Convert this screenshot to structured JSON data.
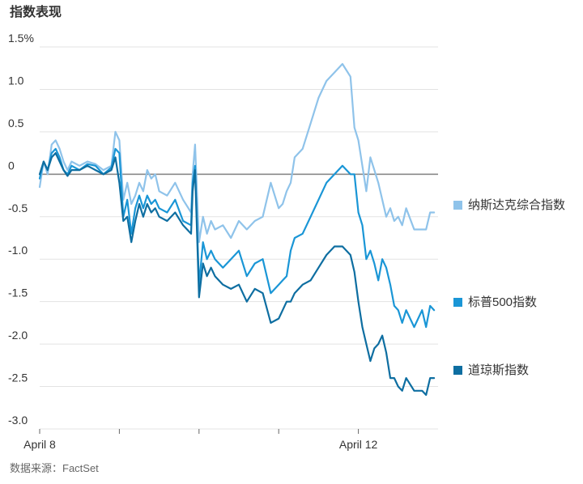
{
  "chart_data": {
    "type": "line",
    "title": "指数表现",
    "source": "数据来源：FactSet",
    "xlabel": "",
    "ylabel": "",
    "ylim": [
      -3.0,
      1.5
    ],
    "y_ticks": [
      "1.5%",
      "1.0",
      "0.5",
      "0",
      "-0.5",
      "-1.0",
      "-1.5",
      "-2.0",
      "-2.5",
      "-3.0"
    ],
    "y_tick_values": [
      1.5,
      1.0,
      0.5,
      0,
      -0.5,
      -1.0,
      -1.5,
      -2.0,
      -2.5,
      -3.0
    ],
    "x_range": [
      0,
      5
    ],
    "x_tick_positions": [
      0,
      1,
      2,
      3,
      4
    ],
    "x_tick_labels": [
      "April 8",
      "",
      "",
      "",
      "April 12"
    ],
    "x_unit": "trading days from April 8",
    "grid": true,
    "zero_line": true,
    "legend_position": "right",
    "series": [
      {
        "name": "纳斯达克综合指数",
        "color": "#8fc3ea",
        "x": [
          0,
          0.05,
          0.1,
          0.15,
          0.2,
          0.25,
          0.3,
          0.35,
          0.4,
          0.5,
          0.6,
          0.7,
          0.8,
          0.9,
          0.95,
          1.0,
          1.05,
          1.1,
          1.15,
          1.2,
          1.25,
          1.3,
          1.35,
          1.4,
          1.45,
          1.5,
          1.6,
          1.7,
          1.8,
          1.9,
          1.92,
          1.95,
          2.0,
          2.05,
          2.1,
          2.15,
          2.2,
          2.3,
          2.4,
          2.5,
          2.6,
          2.7,
          2.8,
          2.9,
          3.0,
          3.05,
          3.1,
          3.15,
          3.2,
          3.3,
          3.4,
          3.5,
          3.6,
          3.7,
          3.8,
          3.9,
          3.95,
          4.0,
          4.05,
          4.1,
          4.15,
          4.2,
          4.25,
          4.3,
          4.35,
          4.4,
          4.45,
          4.5,
          4.55,
          4.6,
          4.7,
          4.8,
          4.85,
          4.9,
          4.95
        ],
        "values": [
          -0.15,
          0.15,
          0.0,
          0.35,
          0.4,
          0.3,
          0.15,
          0.05,
          0.15,
          0.1,
          0.15,
          0.12,
          0.05,
          0.1,
          0.5,
          0.4,
          -0.3,
          -0.1,
          -0.35,
          -0.25,
          -0.1,
          -0.2,
          0.05,
          -0.05,
          0.0,
          -0.2,
          -0.25,
          -0.1,
          -0.3,
          -0.45,
          0.0,
          0.35,
          -0.8,
          -0.5,
          -0.7,
          -0.55,
          -0.65,
          -0.6,
          -0.75,
          -0.55,
          -0.65,
          -0.55,
          -0.5,
          -0.1,
          -0.4,
          -0.35,
          -0.2,
          -0.1,
          0.2,
          0.3,
          0.6,
          0.9,
          1.1,
          1.2,
          1.3,
          1.15,
          0.55,
          0.4,
          0.1,
          -0.2,
          0.2,
          0.05,
          -0.1,
          -0.3,
          -0.5,
          -0.4,
          -0.55,
          -0.5,
          -0.6,
          -0.4,
          -0.65,
          -0.65,
          -0.65,
          -0.45,
          -0.45
        ]
      },
      {
        "name": "标普500指数",
        "color": "#1a96d6",
        "x": [
          0,
          0.05,
          0.1,
          0.15,
          0.2,
          0.25,
          0.3,
          0.35,
          0.4,
          0.5,
          0.6,
          0.7,
          0.8,
          0.9,
          0.95,
          1.0,
          1.05,
          1.1,
          1.15,
          1.2,
          1.25,
          1.3,
          1.35,
          1.4,
          1.45,
          1.5,
          1.6,
          1.7,
          1.8,
          1.9,
          1.92,
          1.95,
          2.0,
          2.05,
          2.1,
          2.15,
          2.2,
          2.3,
          2.4,
          2.5,
          2.6,
          2.7,
          2.8,
          2.9,
          3.0,
          3.05,
          3.1,
          3.15,
          3.2,
          3.3,
          3.4,
          3.5,
          3.6,
          3.7,
          3.8,
          3.9,
          3.95,
          4.0,
          4.05,
          4.1,
          4.15,
          4.2,
          4.25,
          4.3,
          4.35,
          4.4,
          4.45,
          4.5,
          4.55,
          4.6,
          4.7,
          4.8,
          4.85,
          4.9,
          4.95
        ],
        "values": [
          -0.05,
          0.15,
          0.05,
          0.25,
          0.3,
          0.2,
          0.05,
          0.0,
          0.1,
          0.05,
          0.12,
          0.1,
          0.0,
          0.08,
          0.3,
          0.25,
          -0.5,
          -0.3,
          -0.7,
          -0.4,
          -0.25,
          -0.4,
          -0.25,
          -0.35,
          -0.3,
          -0.4,
          -0.45,
          -0.3,
          -0.55,
          -0.6,
          -0.1,
          0.1,
          -1.3,
          -0.8,
          -1.0,
          -0.9,
          -1.0,
          -1.1,
          -1.0,
          -0.9,
          -1.2,
          -1.05,
          -1.0,
          -1.4,
          -1.3,
          -1.25,
          -1.2,
          -0.9,
          -0.75,
          -0.7,
          -0.5,
          -0.3,
          -0.1,
          0.0,
          0.1,
          0.0,
          0.0,
          -0.45,
          -0.6,
          -1.0,
          -0.9,
          -1.05,
          -1.25,
          -1.0,
          -1.1,
          -1.3,
          -1.55,
          -1.6,
          -1.75,
          -1.6,
          -1.8,
          -1.6,
          -1.8,
          -1.55,
          -1.6
        ]
      },
      {
        "name": "道琼斯指数",
        "color": "#0e6ea1",
        "x": [
          0,
          0.05,
          0.1,
          0.15,
          0.2,
          0.25,
          0.3,
          0.35,
          0.4,
          0.5,
          0.6,
          0.7,
          0.8,
          0.9,
          0.95,
          1.0,
          1.05,
          1.1,
          1.15,
          1.2,
          1.25,
          1.3,
          1.35,
          1.4,
          1.45,
          1.5,
          1.6,
          1.7,
          1.8,
          1.9,
          1.92,
          1.95,
          2.0,
          2.05,
          2.1,
          2.15,
          2.2,
          2.3,
          2.4,
          2.5,
          2.6,
          2.7,
          2.8,
          2.9,
          3.0,
          3.05,
          3.1,
          3.15,
          3.2,
          3.3,
          3.4,
          3.5,
          3.6,
          3.7,
          3.8,
          3.9,
          3.95,
          4.0,
          4.05,
          4.1,
          4.15,
          4.2,
          4.25,
          4.3,
          4.35,
          4.4,
          4.45,
          4.5,
          4.55,
          4.6,
          4.7,
          4.8,
          4.85,
          4.9,
          4.95
        ],
        "values": [
          0.0,
          0.15,
          0.05,
          0.2,
          0.25,
          0.15,
          0.05,
          -0.02,
          0.05,
          0.05,
          0.1,
          0.05,
          0.0,
          0.05,
          0.2,
          -0.1,
          -0.55,
          -0.5,
          -0.8,
          -0.55,
          -0.35,
          -0.5,
          -0.35,
          -0.45,
          -0.4,
          -0.5,
          -0.55,
          -0.45,
          -0.6,
          -0.7,
          -0.2,
          0.05,
          -1.45,
          -1.05,
          -1.2,
          -1.1,
          -1.2,
          -1.3,
          -1.35,
          -1.3,
          -1.5,
          -1.35,
          -1.4,
          -1.75,
          -1.7,
          -1.6,
          -1.5,
          -1.5,
          -1.4,
          -1.3,
          -1.25,
          -1.1,
          -0.95,
          -0.85,
          -0.85,
          -0.95,
          -1.15,
          -1.5,
          -1.8,
          -2.0,
          -2.2,
          -2.05,
          -2.0,
          -1.9,
          -2.1,
          -2.4,
          -2.4,
          -2.5,
          -2.55,
          -2.4,
          -2.55,
          -2.55,
          -2.6,
          -2.4,
          -2.4
        ]
      }
    ]
  }
}
